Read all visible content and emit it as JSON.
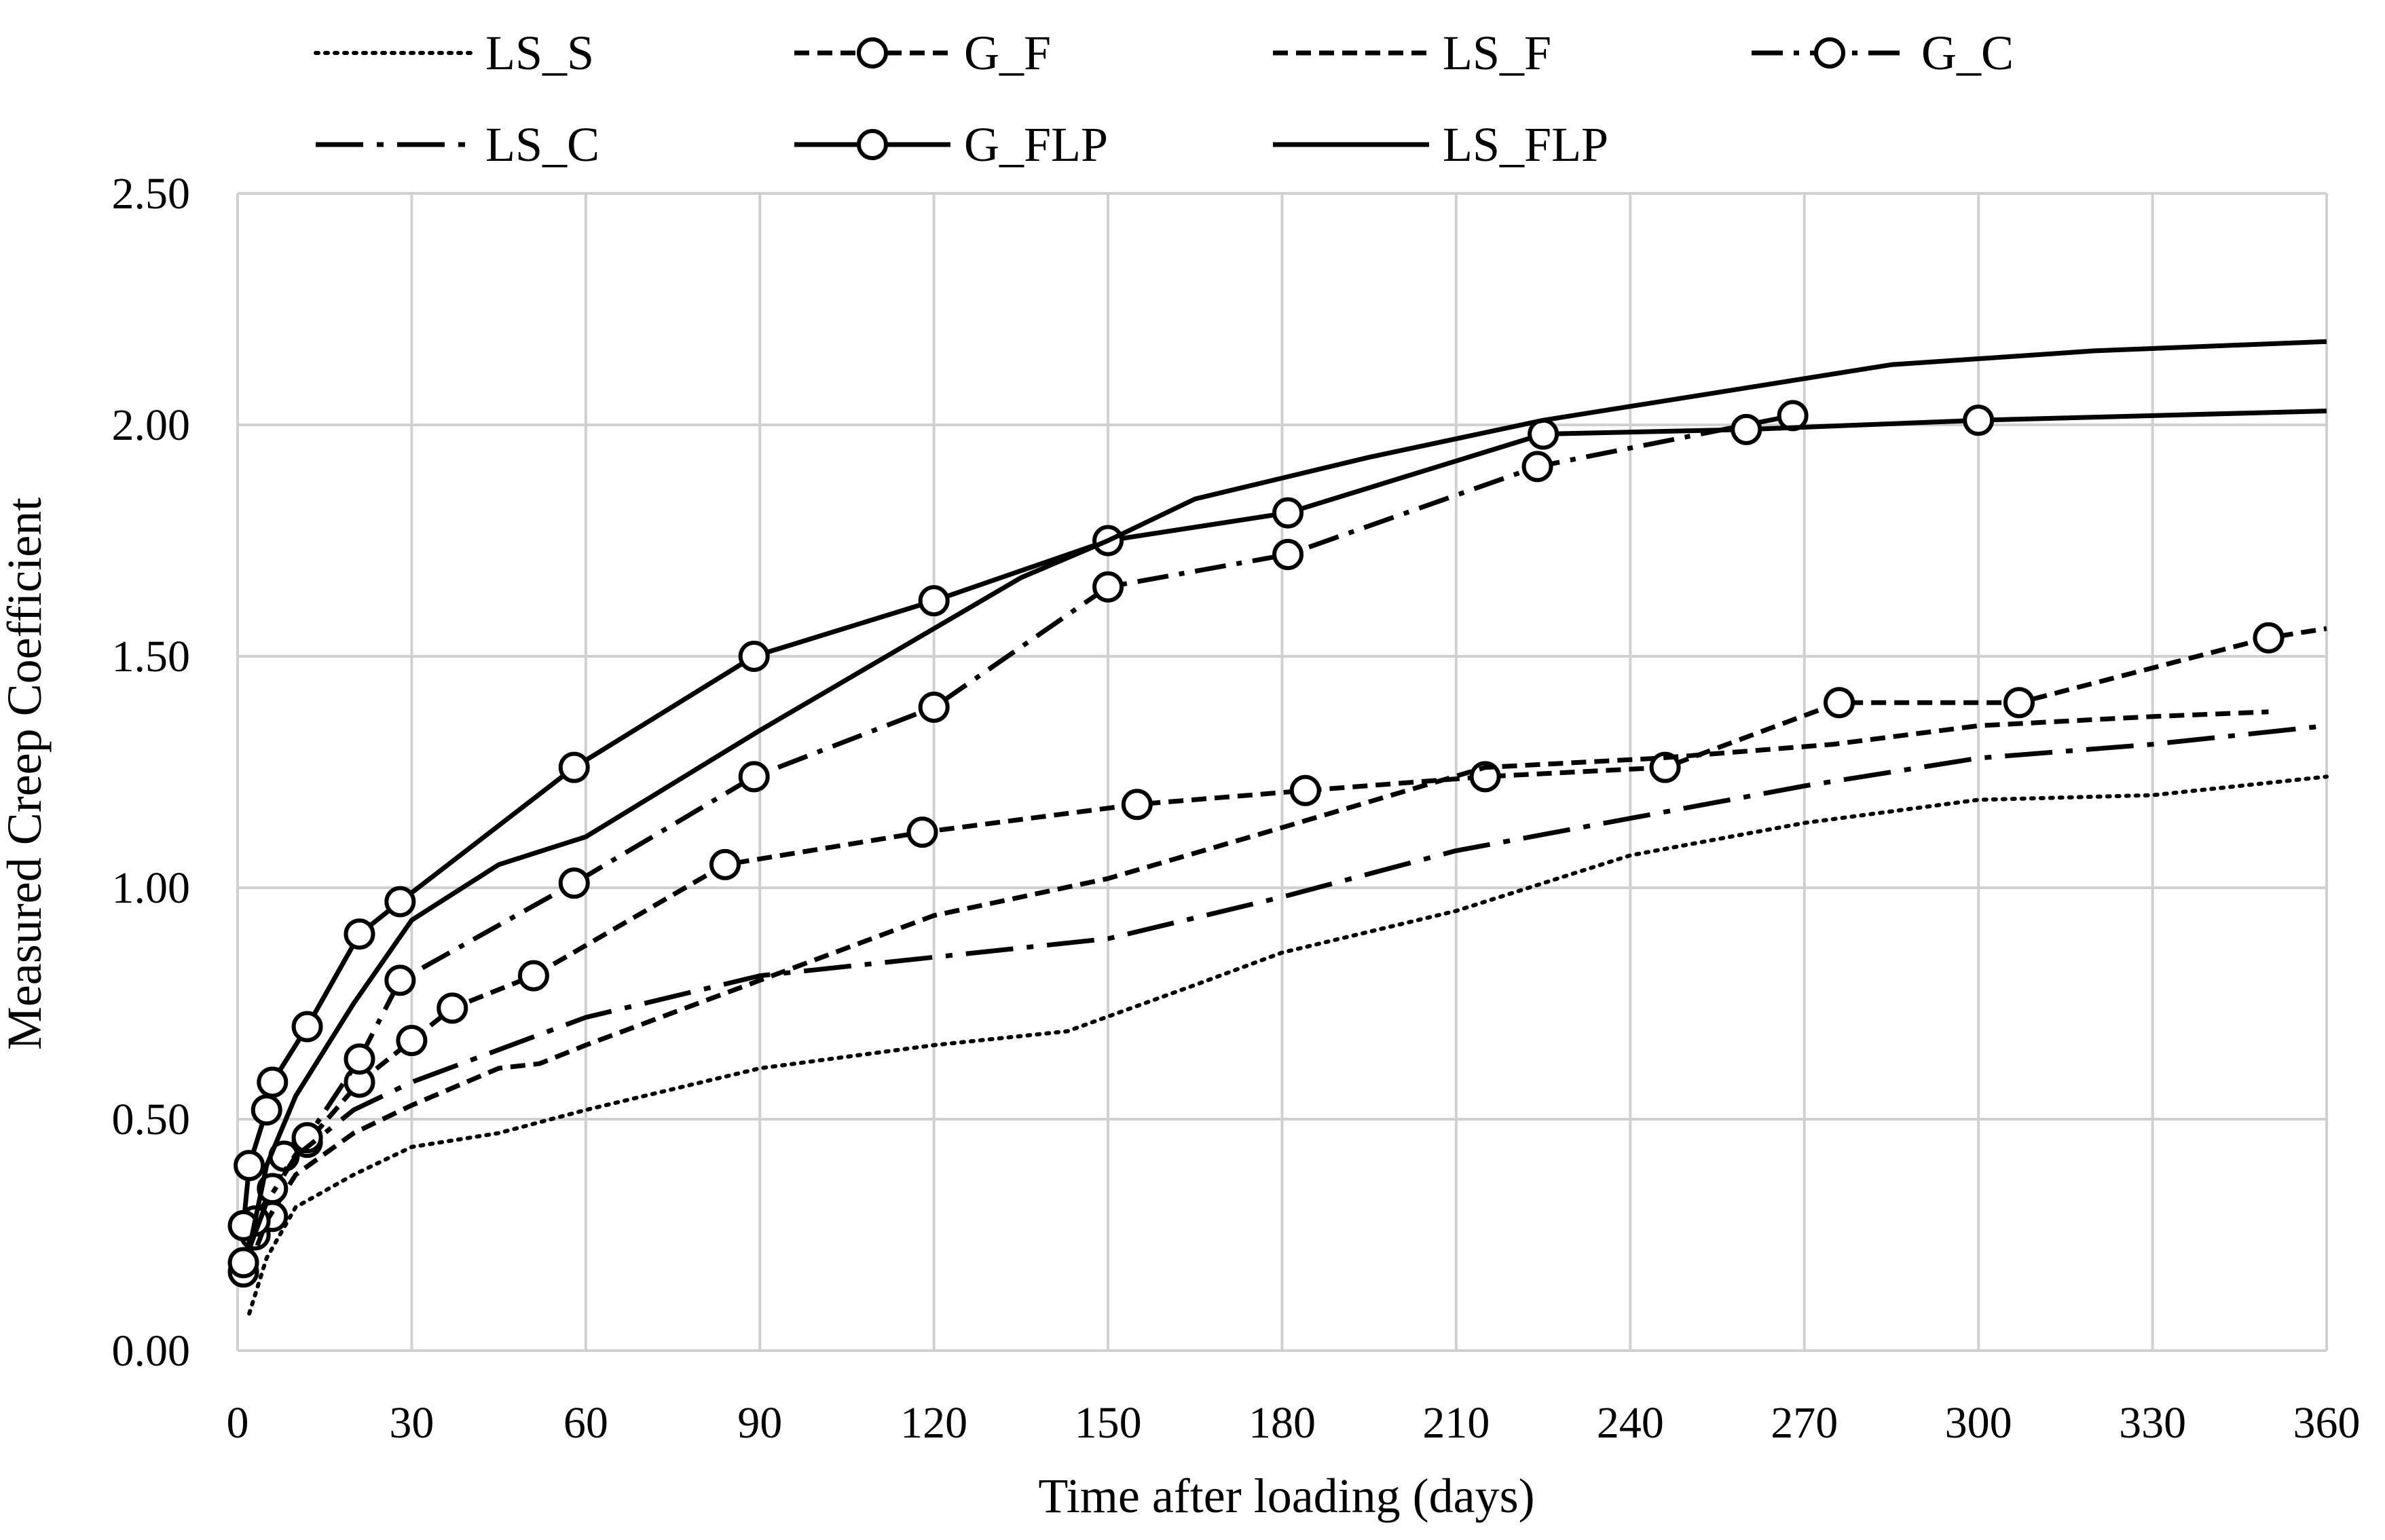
{
  "chart_data": {
    "type": "line",
    "title": "",
    "xlabel": "Time after loading (days)",
    "ylabel": "Measured Creep Coefficient",
    "xlim": [
      0,
      360
    ],
    "ylim": [
      0,
      2.5
    ],
    "grid": true,
    "legend_position": "top",
    "x_ticks": [
      0,
      30,
      60,
      90,
      120,
      150,
      180,
      210,
      240,
      270,
      300,
      330,
      360
    ],
    "x_tick_labels": [
      "0",
      "30",
      "60",
      "90",
      "120",
      "150",
      "180",
      "210",
      "240",
      "270",
      "300",
      "330",
      "360"
    ],
    "y_ticks": [
      0,
      0.5,
      1.0,
      1.5,
      2.0,
      2.5
    ],
    "y_tick_labels": [
      "0.00",
      "0.50",
      "1.00",
      "1.50",
      "2.00",
      "2.50"
    ],
    "line_color": "#000000",
    "grid_color": "#d0d0d0",
    "series": [
      {
        "name": "LS_S",
        "style": "dotted",
        "markers": false,
        "x": [
          2,
          5,
          10,
          20,
          30,
          45,
          60,
          90,
          120,
          143,
          165,
          180,
          210,
          240,
          270,
          300,
          330,
          360
        ],
        "y": [
          0.08,
          0.2,
          0.31,
          0.38,
          0.44,
          0.47,
          0.52,
          0.61,
          0.66,
          0.69,
          0.79,
          0.86,
          0.95,
          1.07,
          1.14,
          1.19,
          1.2,
          1.24
        ]
      },
      {
        "name": "G_F",
        "style": "dashed",
        "markers": true,
        "x": [
          1,
          3,
          6,
          8,
          12,
          21,
          30,
          37,
          51,
          84,
          118,
          155,
          184,
          215,
          246,
          276,
          307,
          350,
          360
        ],
        "y": [
          0.17,
          0.25,
          0.29,
          0.42,
          0.45,
          0.58,
          0.67,
          0.74,
          0.81,
          1.05,
          1.12,
          1.18,
          1.21,
          1.24,
          1.26,
          1.4,
          1.4,
          1.54,
          1.56
        ]
      },
      {
        "name": "LS_F",
        "style": "dashed",
        "markers": false,
        "x": [
          2,
          5,
          10,
          20,
          30,
          45,
          52,
          60,
          90,
          120,
          150,
          180,
          215,
          245,
          275,
          300,
          330,
          350
        ],
        "y": [
          0.18,
          0.28,
          0.38,
          0.47,
          0.53,
          0.61,
          0.62,
          0.66,
          0.8,
          0.94,
          1.02,
          1.13,
          1.26,
          1.28,
          1.31,
          1.35,
          1.37,
          1.38
        ]
      },
      {
        "name": "G_C",
        "style": "dash-dot",
        "markers": true,
        "x": [
          1,
          3,
          6,
          12,
          21,
          28,
          58,
          89,
          120,
          150,
          181,
          224,
          268
        ],
        "y": [
          0.19,
          0.28,
          0.35,
          0.46,
          0.63,
          0.8,
          1.01,
          1.24,
          1.39,
          1.65,
          1.72,
          1.91,
          2.02
        ]
      },
      {
        "name": "LS_C",
        "style": "long-dash-dot",
        "markers": false,
        "x": [
          2,
          5,
          10,
          20,
          30,
          45,
          60,
          90,
          120,
          150,
          180,
          210,
          240,
          270,
          300,
          330,
          360
        ],
        "y": [
          0.22,
          0.32,
          0.42,
          0.52,
          0.58,
          0.65,
          0.72,
          0.81,
          0.85,
          0.89,
          0.98,
          1.08,
          1.15,
          1.22,
          1.28,
          1.31,
          1.35
        ]
      },
      {
        "name": "G_FLP",
        "style": "solid",
        "markers": true,
        "x": [
          1,
          2,
          5,
          6,
          12,
          21,
          28,
          58,
          89,
          120,
          150,
          181,
          225,
          260,
          300,
          360
        ],
        "y": [
          0.27,
          0.4,
          0.52,
          0.58,
          0.7,
          0.9,
          0.97,
          1.26,
          1.5,
          1.62,
          1.75,
          1.81,
          1.98,
          1.99,
          2.01,
          2.03
        ]
      },
      {
        "name": "LS_FLP",
        "style": "solid",
        "markers": false,
        "x": [
          2,
          5,
          10,
          20,
          30,
          45,
          55,
          60,
          90,
          120,
          135,
          150,
          165,
          195,
          225,
          255,
          285,
          320,
          360
        ],
        "y": [
          0.22,
          0.4,
          0.55,
          0.75,
          0.93,
          1.05,
          1.09,
          1.11,
          1.34,
          1.56,
          1.67,
          1.75,
          1.84,
          1.93,
          2.01,
          2.07,
          2.13,
          2.16,
          2.18
        ]
      }
    ]
  }
}
